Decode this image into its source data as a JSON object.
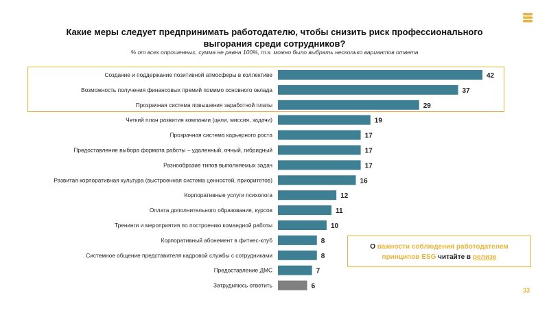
{
  "title_line1": "Какие меры следует предпринимать работодателю, чтобы снизить риск профессионального",
  "title_line2": "выгорания среди сотрудников?",
  "subtitle": "% от всех опрошенных, сумма не равна 100%, т.к. можно было выбрать несколько вариантов ответа",
  "callout": {
    "part1": "О ",
    "accent": "важности соблюдения работодателем",
    "part2": "принципов ESG",
    "part3": " читайте в ",
    "link": "релизе"
  },
  "page_number": "33",
  "colors": {
    "bar": "#3f7f94",
    "bar_neutral": "#808080",
    "accent": "#e8b53a"
  },
  "logo_icon": "stacked-coins-icon",
  "chart_data": {
    "type": "bar",
    "orientation": "horizontal",
    "categories": [
      "Создание и поддержание позитивной атмосферы в коллективе",
      "Возможность получения финансовых премий помимо основного оклада",
      "Прозрачная система повышения заработной платы",
      "Четкий план развития компании (цели, миссия, задачи)",
      "Прозрачная система карьерного роста",
      "Предоставление выбора формата работы – удаленный, очный, гибридный",
      "Разнообразие типов выполняемых задач",
      "Развитая корпоративная культура (выстроенная система ценностей, приоритетов)",
      "Корпоративные услуги психолога",
      "Оплата дополнительного образования, курсов",
      "Тренинги и мероприятия по построению командной работы",
      "Корпоративный абонемент в фитнес-клуб",
      "Системное общение представителя кадровой службы с сотрудниками",
      "Предоставление ДМС",
      "Затрудняюсь ответить"
    ],
    "values": [
      42,
      37,
      29,
      19,
      17,
      17,
      17,
      16,
      12,
      11,
      10,
      8,
      8,
      7,
      6
    ],
    "highlighted": [
      0,
      1,
      2
    ],
    "neutral": [
      14
    ],
    "xlim": [
      0,
      45
    ],
    "grid": false,
    "legend": "none"
  }
}
